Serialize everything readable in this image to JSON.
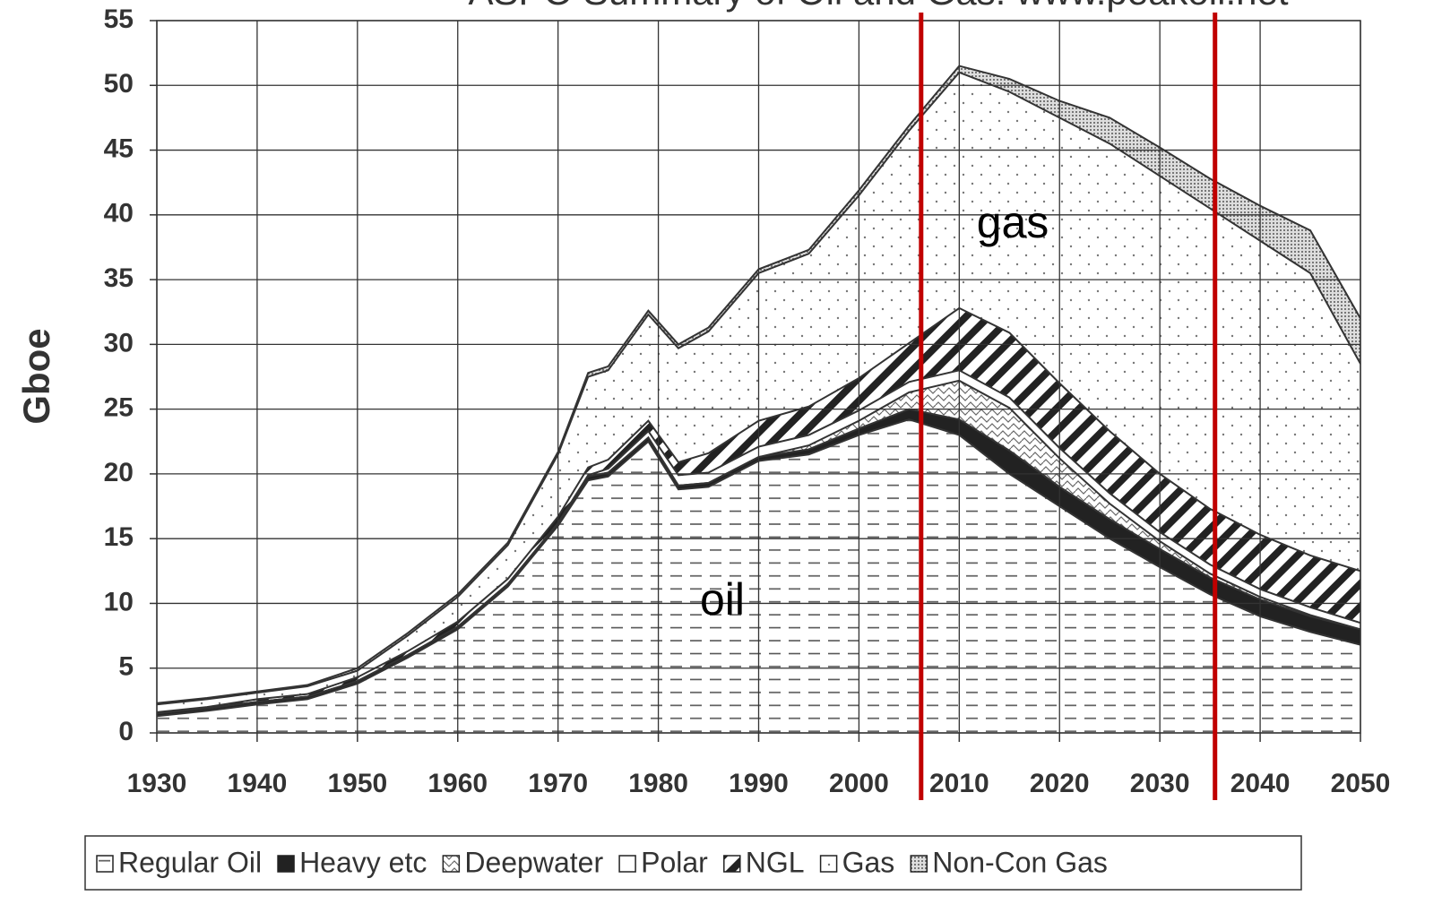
{
  "chart_data": {
    "type": "stacked-area",
    "title": "ASPO Summary of Oil and Gas: www.peakoil.net",
    "y_label": "Gboe",
    "annotations": [
      "gas",
      "oil"
    ],
    "x": [
      1930,
      1935,
      1940,
      1945,
      1950,
      1955,
      1960,
      1965,
      1970,
      1973,
      1975,
      1979,
      1982,
      1985,
      1990,
      1995,
      2000,
      2005,
      2010,
      2015,
      2020,
      2025,
      2030,
      2035,
      2040,
      2045,
      2050
    ],
    "series": [
      {
        "name": "Regular Oil",
        "color": "#ffffff",
        "pattern": "dash",
        "values": [
          1.3,
          1.7,
          2.2,
          2.6,
          3.8,
          5.8,
          8,
          11.3,
          16,
          19.5,
          19.8,
          22.5,
          18.8,
          19,
          21,
          21.5,
          23,
          24.2,
          23,
          20,
          17.5,
          15,
          12.8,
          10.7,
          9,
          7.8,
          6.8
        ]
      },
      {
        "name": "Heavy etc",
        "color": "#222222",
        "pattern": null,
        "values": [
          0.2,
          0.2,
          0.2,
          0.2,
          0.2,
          0.2,
          0.2,
          0.2,
          0.2,
          0.3,
          0.3,
          0.3,
          0.3,
          0.3,
          0.3,
          0.4,
          0.5,
          0.8,
          1.2,
          1.8,
          1.5,
          1.5,
          1.4,
          1.3,
          1.3,
          1.2,
          1.2
        ]
      },
      {
        "name": "Deepwater",
        "color": "#ffffff",
        "pattern": "wave",
        "values": [
          0,
          0,
          0,
          0,
          0,
          0,
          0,
          0,
          0,
          0,
          0,
          0,
          0,
          0,
          0,
          0.3,
          0.6,
          1.3,
          3,
          3.3,
          2.2,
          1.2,
          0.6,
          0.3,
          0.2,
          0.1,
          0
        ]
      },
      {
        "name": "Polar",
        "color": "#ffffff",
        "pattern": null,
        "values": [
          0,
          0,
          0,
          0,
          0,
          0,
          0,
          0,
          0,
          0.1,
          0.3,
          0.5,
          0.8,
          0.8,
          0.8,
          0.8,
          0.8,
          0.8,
          0.8,
          0.8,
          0.8,
          0.8,
          0.7,
          0.7,
          0.6,
          0.6,
          0.5
        ]
      },
      {
        "name": "NGL",
        "color": "#ffffff",
        "pattern": "stripe",
        "values": [
          0.1,
          0.1,
          0.2,
          0.2,
          0.3,
          0.3,
          0.4,
          0.4,
          0.5,
          0.6,
          0.7,
          0.8,
          1,
          1.5,
          2,
          2.2,
          2.5,
          3,
          4.8,
          5,
          5,
          4.8,
          4.5,
          4.3,
          4.2,
          4,
          4
        ]
      },
      {
        "name": "Gas",
        "color": "#ffffff",
        "pattern": "dots",
        "values": [
          0.6,
          0.6,
          0.5,
          0.6,
          0.5,
          1.2,
          1.9,
          2.6,
          4.8,
          7,
          6.9,
          8.2,
          8.8,
          9.4,
          11.4,
          11.8,
          14.1,
          16.4,
          18.2,
          18.6,
          20.5,
          22.2,
          23,
          23.2,
          22.7,
          21.8,
          16
        ]
      },
      {
        "name": "Non-Con Gas",
        "color": "#bbbbbb",
        "pattern": "fine",
        "values": [
          0.1,
          0.1,
          0.1,
          0.1,
          0.2,
          0.2,
          0.2,
          0.2,
          0.2,
          0.3,
          0.3,
          0.3,
          0.3,
          0.3,
          0.3,
          0.3,
          0.4,
          0.4,
          0.5,
          1,
          1.3,
          2,
          2.2,
          2.3,
          2.7,
          3.3,
          3.5
        ]
      }
    ],
    "vlines": [
      2006.2,
      2035.5
    ],
    "vline_color": "#c00000",
    "xlim": [
      1930,
      2050
    ],
    "xticks": [
      1930,
      1940,
      1950,
      1960,
      1970,
      1980,
      1990,
      2000,
      2010,
      2020,
      2030,
      2040,
      2050
    ],
    "ylim": [
      0,
      55
    ],
    "yticks": [
      0,
      5,
      10,
      15,
      20,
      25,
      30,
      35,
      40,
      45,
      50,
      55
    ],
    "grid": true,
    "legend": "bottom"
  }
}
